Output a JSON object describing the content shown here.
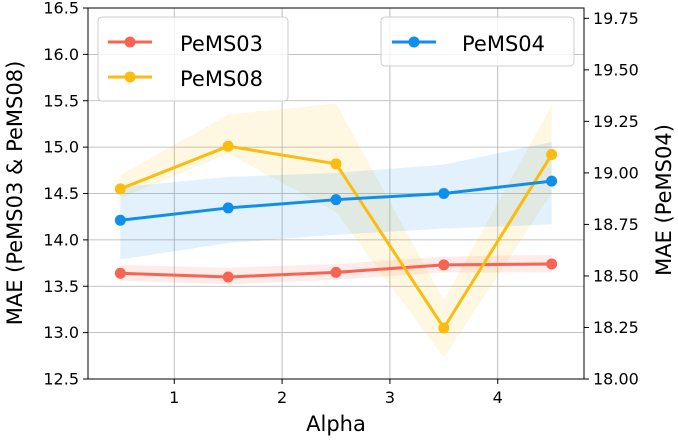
{
  "chart_data": {
    "type": "line",
    "xlabel": "Alpha",
    "ylabel_left": "MAE (PeMS03 & PeMS08)",
    "ylabel_right": "MAE (PeMS04)",
    "x": [
      0.5,
      1.5,
      2.5,
      3.5,
      4.5
    ],
    "xlim": [
      0.2,
      4.8
    ],
    "ylim_left": [
      12.5,
      16.5
    ],
    "ylim_right": [
      18.0,
      19.8
    ],
    "xticks": [
      1,
      2,
      3,
      4
    ],
    "xtick_labels": [
      "1",
      "2",
      "3",
      "4"
    ],
    "yticks_left": [
      12.5,
      13.0,
      13.5,
      14.0,
      14.5,
      15.0,
      15.5,
      16.0,
      16.5
    ],
    "ytick_labels_left": [
      "12.5",
      "13.0",
      "13.5",
      "14.0",
      "14.5",
      "15.0",
      "15.5",
      "16.0",
      "16.5"
    ],
    "yticks_right": [
      18.0,
      18.25,
      18.5,
      18.75,
      19.0,
      19.25,
      19.5,
      19.75
    ],
    "ytick_labels_right": [
      "18.00",
      "18.25",
      "18.50",
      "18.75",
      "19.00",
      "19.25",
      "19.50",
      "19.75"
    ],
    "grid": true,
    "series": [
      {
        "name": "PeMS03",
        "axis": "left",
        "color": "#f96452",
        "values": [
          13.64,
          13.6,
          13.65,
          13.73,
          13.74
        ],
        "band_lower": [
          13.56,
          13.52,
          13.57,
          13.65,
          13.65
        ],
        "band_upper": [
          13.73,
          13.7,
          13.74,
          13.82,
          13.84
        ]
      },
      {
        "name": "PeMS08",
        "axis": "left",
        "color": "#f9bc0f",
        "values": [
          14.55,
          15.01,
          14.82,
          13.05,
          14.92
        ],
        "band_lower": [
          14.45,
          14.93,
          14.3,
          12.73,
          14.5
        ],
        "band_upper": [
          14.7,
          15.35,
          15.47,
          13.35,
          15.45
        ]
      },
      {
        "name": "PeMS04",
        "axis": "right",
        "color": "#0f8eea",
        "values": [
          18.77,
          18.83,
          18.87,
          18.9,
          18.96
        ],
        "band_lower": [
          18.58,
          18.66,
          18.7,
          18.73,
          18.75
        ],
        "band_upper": [
          18.93,
          18.98,
          19.0,
          19.04,
          19.15
        ]
      }
    ],
    "legend_left": {
      "placement": "top-left",
      "entries": [
        "PeMS03",
        "PeMS08"
      ]
    },
    "legend_right": {
      "placement": "top-right",
      "entries": [
        "PeMS04"
      ]
    }
  }
}
